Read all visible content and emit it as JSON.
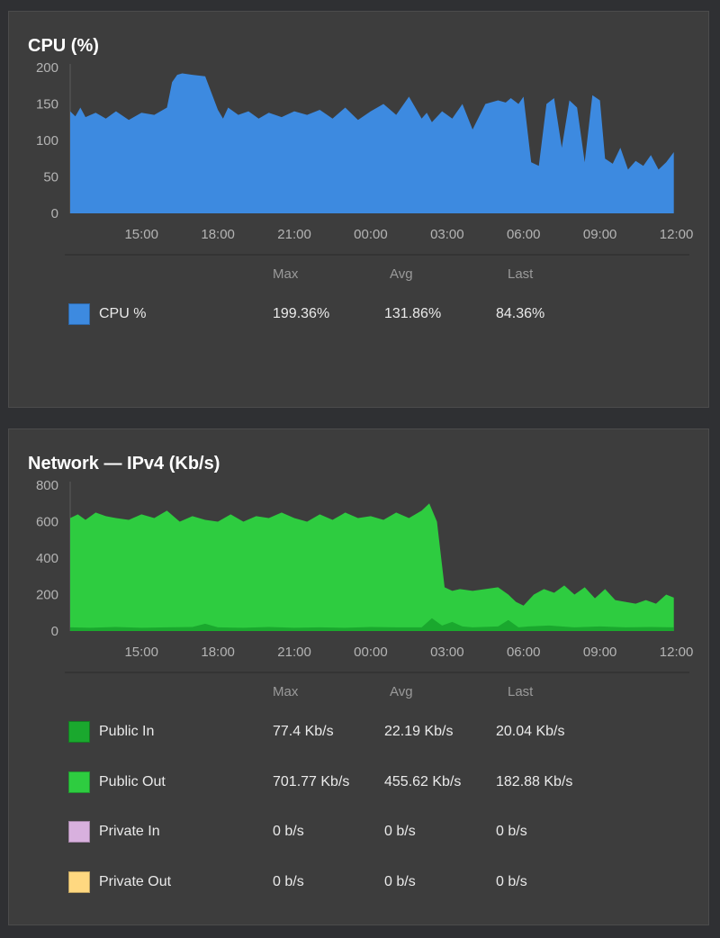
{
  "chart_data": [
    {
      "type": "area",
      "title": "CPU (%)",
      "ylim": [
        0,
        200
      ],
      "yticks": [
        "0",
        "50",
        "100",
        "150",
        "200"
      ],
      "xticks": [
        "15:00",
        "18:00",
        "21:00",
        "00:00",
        "03:00",
        "06:00",
        "09:00",
        "12:00"
      ],
      "grid": false,
      "series": [
        {
          "name": "CPU %",
          "color": "#3d8ae0",
          "x": [
            12.2,
            12.4,
            12.6,
            12.8,
            13.2,
            13.6,
            14.0,
            14.5,
            15.0,
            15.5,
            16.0,
            16.2,
            16.4,
            16.6,
            17.0,
            17.5,
            18.0,
            18.2,
            18.4,
            18.8,
            19.2,
            19.6,
            20.0,
            20.5,
            21.0,
            21.5,
            22.0,
            22.5,
            23.0,
            23.5,
            24.0,
            24.5,
            25.0,
            25.5,
            26.0,
            26.2,
            26.4,
            26.8,
            27.2,
            27.6,
            28.0,
            28.5,
            29.0,
            29.3,
            29.5,
            29.8,
            30.0,
            30.3,
            30.6,
            30.9,
            31.2,
            31.5,
            31.8,
            32.1,
            32.4,
            32.7,
            33.0,
            33.2,
            33.5,
            33.8,
            34.1,
            34.4,
            34.7,
            35.0,
            35.3,
            35.6,
            35.9
          ],
          "values": [
            140,
            133,
            145,
            132,
            138,
            130,
            140,
            128,
            138,
            135,
            145,
            180,
            190,
            192,
            190,
            188,
            142,
            130,
            145,
            135,
            140,
            130,
            138,
            132,
            140,
            135,
            142,
            130,
            145,
            128,
            140,
            150,
            135,
            160,
            130,
            138,
            125,
            140,
            130,
            150,
            115,
            150,
            155,
            152,
            158,
            150,
            160,
            70,
            65,
            150,
            158,
            90,
            155,
            145,
            70,
            162,
            155,
            75,
            68,
            90,
            60,
            72,
            65,
            80,
            60,
            70,
            84
          ]
        }
      ],
      "legend_headers": [
        "Max",
        "Avg",
        "Last"
      ],
      "stats": [
        {
          "name": "CPU %",
          "color": "#3d8ae0",
          "max": "199.36%",
          "avg": "131.86%",
          "last": "84.36%"
        }
      ]
    },
    {
      "type": "area",
      "title": "Network — IPv4 (Kb/s)",
      "ylim": [
        0,
        800
      ],
      "yticks": [
        "0",
        "200",
        "400",
        "600",
        "800"
      ],
      "xticks": [
        "15:00",
        "18:00",
        "21:00",
        "00:00",
        "03:00",
        "06:00",
        "09:00",
        "12:00"
      ],
      "grid": false,
      "series": [
        {
          "name": "Public Out",
          "color": "#2ecc40",
          "x": [
            12.2,
            12.5,
            12.8,
            13.2,
            13.6,
            14.0,
            14.5,
            15.0,
            15.5,
            16.0,
            16.5,
            17.0,
            17.5,
            18.0,
            18.5,
            19.0,
            19.5,
            20.0,
            20.5,
            21.0,
            21.5,
            22.0,
            22.5,
            23.0,
            23.5,
            24.0,
            24.5,
            25.0,
            25.5,
            26.0,
            26.3,
            26.6,
            26.9,
            27.2,
            27.5,
            28.0,
            28.5,
            29.0,
            29.4,
            29.7,
            30.0,
            30.4,
            30.8,
            31.2,
            31.6,
            32.0,
            32.4,
            32.8,
            33.2,
            33.6,
            34.0,
            34.4,
            34.8,
            35.2,
            35.6,
            35.9
          ],
          "values": [
            620,
            640,
            610,
            650,
            630,
            620,
            610,
            640,
            620,
            660,
            600,
            630,
            610,
            600,
            640,
            600,
            630,
            620,
            650,
            620,
            600,
            640,
            610,
            650,
            620,
            630,
            610,
            650,
            620,
            660,
            700,
            600,
            240,
            220,
            230,
            220,
            230,
            240,
            200,
            160,
            140,
            200,
            230,
            210,
            250,
            200,
            240,
            180,
            230,
            170,
            160,
            150,
            170,
            150,
            200,
            183
          ]
        },
        {
          "name": "Public In",
          "color": "#1aa82e",
          "x": [
            12.2,
            13.0,
            14.0,
            15.0,
            16.0,
            17.0,
            17.5,
            18.0,
            19.0,
            20.0,
            21.0,
            22.0,
            23.0,
            24.0,
            25.0,
            26.0,
            26.4,
            26.8,
            27.2,
            27.6,
            28.0,
            29.0,
            29.4,
            29.8,
            30.2,
            31.0,
            32.0,
            33.0,
            34.0,
            35.0,
            35.9
          ],
          "values": [
            20,
            18,
            22,
            18,
            20,
            22,
            40,
            20,
            18,
            22,
            18,
            20,
            18,
            22,
            20,
            20,
            70,
            30,
            50,
            25,
            20,
            25,
            60,
            20,
            25,
            30,
            20,
            25,
            20,
            22,
            20
          ]
        }
      ],
      "legend_headers": [
        "Max",
        "Avg",
        "Last"
      ],
      "stats": [
        {
          "name": "Public In",
          "color": "#1aa82e",
          "max": "77.4 Kb/s",
          "avg": "22.19 Kb/s",
          "last": "20.04 Kb/s"
        },
        {
          "name": "Public Out",
          "color": "#2ecc40",
          "max": "701.77 Kb/s",
          "avg": "455.62 Kb/s",
          "last": "182.88 Kb/s"
        },
        {
          "name": "Private In",
          "color": "#d8b0de",
          "max": "0 b/s",
          "avg": "0 b/s",
          "last": "0 b/s"
        },
        {
          "name": "Private Out",
          "color": "#ffd880",
          "max": "0 b/s",
          "avg": "0 b/s",
          "last": "0 b/s"
        }
      ]
    }
  ]
}
